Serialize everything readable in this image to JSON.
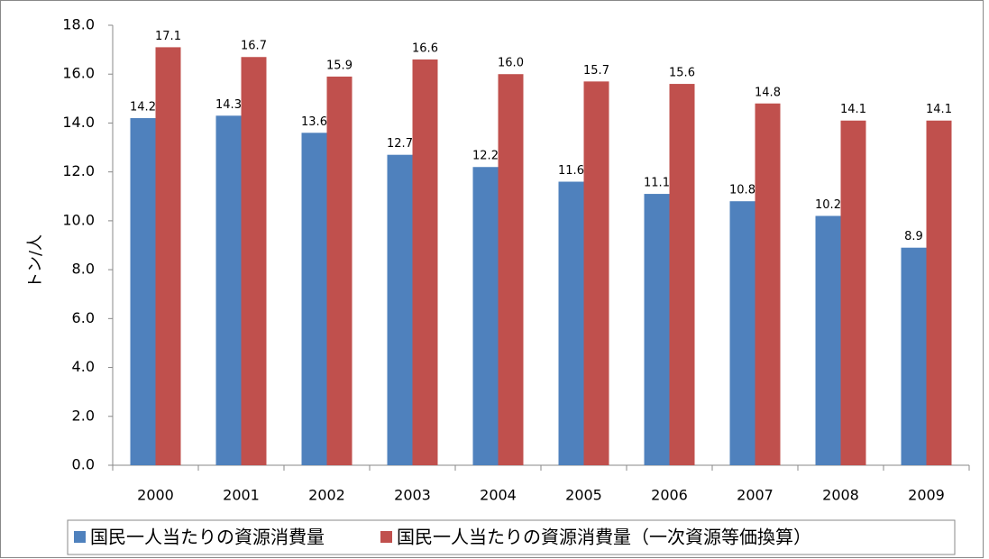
{
  "chart_data": {
    "type": "bar",
    "y_label": "トン/人",
    "categories": [
      "2000",
      "2001",
      "2002",
      "2003",
      "2004",
      "2005",
      "2006",
      "2007",
      "2008",
      "2009"
    ],
    "series": [
      {
        "name": "国民一人当たりの資源消費量",
        "color": "#4f81bd",
        "values": [
          14.2,
          14.3,
          13.6,
          12.7,
          12.2,
          11.6,
          11.1,
          10.8,
          10.2,
          8.9
        ],
        "value_labels": [
          "14.2",
          "14.3",
          "13.6",
          "12.7",
          "12.2",
          "11.6",
          "11.1",
          "10.8",
          "10.2",
          "8.9"
        ]
      },
      {
        "name": "国民一人当たりの資源消費量（一次資源等価換算）",
        "color": "#c0504d",
        "values": [
          17.1,
          16.7,
          15.9,
          16.6,
          16.0,
          15.7,
          15.6,
          14.8,
          14.1,
          14.1
        ],
        "value_labels": [
          "17.1",
          "16.7",
          "15.9",
          "16.6",
          "16.0",
          "15.7",
          "15.6",
          "14.8",
          "14.1",
          "14.1"
        ]
      }
    ],
    "ylim": [
      0,
      18
    ],
    "yticks": [
      {
        "value": 0,
        "label": "0.0"
      },
      {
        "value": 2,
        "label": "2.0"
      },
      {
        "value": 4,
        "label": "4.0"
      },
      {
        "value": 6,
        "label": "6.0"
      },
      {
        "value": 8,
        "label": "8.0"
      },
      {
        "value": 10,
        "label": "10.0"
      },
      {
        "value": 12,
        "label": "12.0"
      },
      {
        "value": 14,
        "label": "14.0"
      },
      {
        "value": 16,
        "label": "16.0"
      },
      {
        "value": 18,
        "label": "18.0"
      }
    ],
    "grid": false,
    "legend": "bottom"
  }
}
